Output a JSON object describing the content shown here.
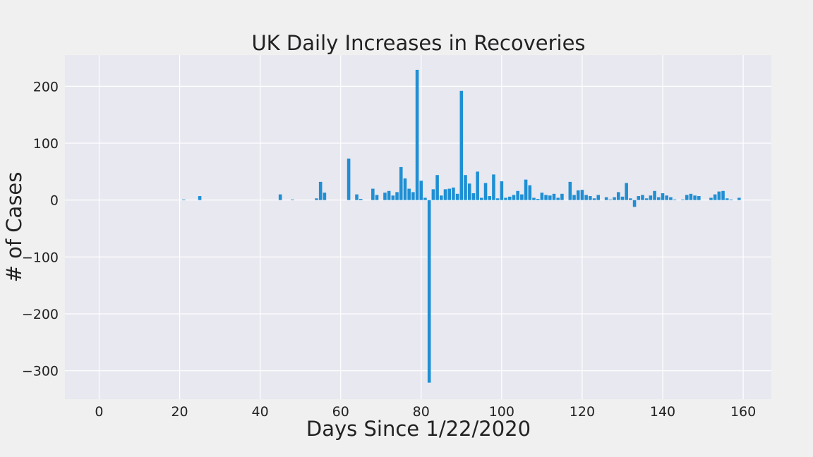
{
  "chart_data": {
    "type": "bar",
    "title": "UK Daily Increases in Recoveries",
    "xlabel": "Days Since 1/22/2020",
    "ylabel": "# of Cases",
    "xlim": [
      -8.5,
      167
    ],
    "ylim": [
      -350,
      255
    ],
    "xticks": [
      0,
      20,
      40,
      60,
      80,
      100,
      120,
      140,
      160
    ],
    "yticks": [
      -300,
      -200,
      -100,
      0,
      100,
      200
    ],
    "grid": true,
    "legend": "none",
    "colors": {
      "bar": "#1f8fd3",
      "plot_background": "#e8e8f0",
      "figure_background": "#f0f0f0",
      "grid": "#ffffff",
      "text": "#222222"
    },
    "x": [
      21,
      25,
      45,
      48,
      54,
      55,
      56,
      62,
      64,
      65,
      68,
      69,
      71,
      72,
      73,
      74,
      75,
      76,
      77,
      78,
      79,
      80,
      81,
      82,
      83,
      84,
      85,
      86,
      87,
      88,
      89,
      90,
      91,
      92,
      93,
      94,
      95,
      96,
      97,
      98,
      99,
      100,
      101,
      102,
      103,
      104,
      105,
      106,
      107,
      108,
      109,
      110,
      111,
      112,
      113,
      114,
      115,
      117,
      118,
      119,
      120,
      121,
      122,
      123,
      124,
      126,
      127,
      128,
      129,
      130,
      131,
      132,
      133,
      134,
      135,
      136,
      137,
      138,
      139,
      140,
      141,
      142,
      143,
      145,
      146,
      147,
      148,
      149,
      152,
      153,
      154,
      155,
      156,
      157,
      159
    ],
    "values": [
      1,
      7,
      10,
      1,
      3,
      32,
      13,
      73,
      10,
      2,
      20,
      9,
      13,
      16,
      8,
      14,
      58,
      38,
      20,
      14,
      229,
      34,
      4,
      -321,
      19,
      44,
      8,
      19,
      20,
      22,
      11,
      192,
      44,
      29,
      12,
      50,
      4,
      30,
      7,
      45,
      3,
      33,
      4,
      6,
      9,
      16,
      10,
      36,
      26,
      4,
      2,
      13,
      9,
      8,
      11,
      4,
      11,
      32,
      9,
      17,
      18,
      9,
      7,
      3,
      9,
      5,
      1,
      5,
      14,
      6,
      30,
      3,
      -12,
      7,
      9,
      3,
      8,
      16,
      5,
      12,
      8,
      5,
      1,
      1,
      9,
      11,
      8,
      7,
      4,
      10,
      15,
      16,
      3,
      1,
      4
    ]
  }
}
